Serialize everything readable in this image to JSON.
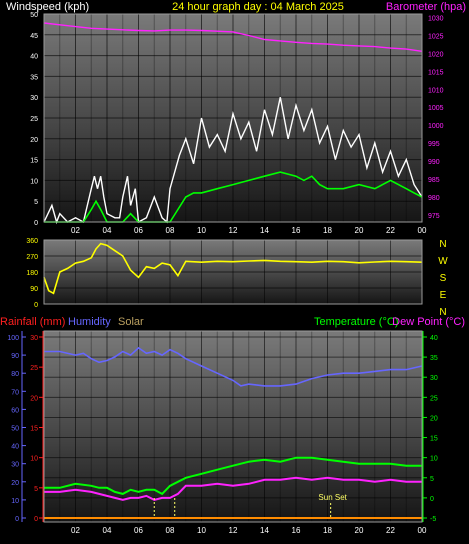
{
  "header": {
    "left_label": "Windspeed (kph)",
    "center_label": "24 hour graph day : 04 March 2025",
    "right_label": "Barometer (hpa)"
  },
  "colors": {
    "wind_gust": "#ffffff",
    "wind_avg": "#00ff00",
    "barometer": "#ff22ff",
    "direction": "#ffff00",
    "rainfall": "#ff2020",
    "humidity": "#6666ff",
    "solar": "#bba060",
    "temperature": "#00ff00",
    "dew_point": "#ff22ff",
    "sunset": "#ffff66"
  },
  "x_tick_labels": [
    "02",
    "04",
    "06",
    "08",
    "10",
    "12",
    "14",
    "16",
    "18",
    "20",
    "22",
    "00"
  ],
  "chart_data": [
    {
      "type": "line",
      "name": "wind-and-barometer",
      "xlim": [
        0,
        24
      ],
      "y_left": {
        "label": "Windspeed (kph)",
        "ticks": [
          0,
          5,
          10,
          15,
          20,
          25,
          30,
          35,
          40,
          45,
          50
        ],
        "range": [
          0,
          50
        ]
      },
      "y_right": {
        "label": "Barometer (hpa)",
        "ticks": [
          975,
          980,
          985,
          990,
          995,
          1000,
          1005,
          1010,
          1015,
          1020,
          1025,
          1030
        ],
        "range": [
          973,
          1031
        ]
      },
      "series": [
        {
          "name": "Barometer (hpa)",
          "axis": "right",
          "x": [
            0,
            1,
            2,
            3,
            4,
            5,
            6,
            7,
            8,
            9,
            10,
            11,
            12,
            13,
            14,
            15,
            16,
            17,
            18,
            19,
            20,
            21,
            22,
            23,
            24
          ],
          "y": [
            1028.5,
            1028,
            1027.5,
            1027,
            1026.8,
            1026.6,
            1026.4,
            1026.3,
            1026.5,
            1026.5,
            1026.4,
            1026.2,
            1026,
            1025,
            1023.9,
            1023.5,
            1023.1,
            1022.8,
            1022.6,
            1022.3,
            1022.1,
            1021.9,
            1021.5,
            1021.2,
            1020.6
          ]
        },
        {
          "name": "Wind gust",
          "axis": "left",
          "x": [
            0,
            0.5,
            0.8,
            1,
            1.5,
            2,
            2.5,
            3,
            3.2,
            3.4,
            3.6,
            3.8,
            4,
            4.5,
            4.8,
            5,
            5.3,
            5.5,
            5.8,
            6,
            6.5,
            7,
            7.5,
            7.8,
            8,
            8.3,
            8.6,
            9,
            9.5,
            10,
            10.5,
            11,
            11.5,
            12,
            12.5,
            13,
            13.5,
            14,
            14.5,
            15,
            15.5,
            16,
            16.5,
            17,
            17.5,
            18,
            18.5,
            19,
            19.5,
            20,
            20.5,
            21,
            21.5,
            22,
            22.5,
            23,
            23.5,
            24
          ],
          "y": [
            0,
            4,
            0,
            2,
            0,
            1,
            0,
            8,
            11,
            8,
            11,
            6,
            2,
            1,
            1,
            6,
            11,
            4,
            8,
            0,
            1,
            6,
            1,
            0,
            8,
            12,
            16,
            20,
            14,
            25,
            18,
            21,
            17,
            26,
            20,
            24,
            17,
            27,
            21,
            30,
            20,
            28,
            22,
            27,
            19,
            23,
            15,
            22,
            18,
            21,
            13,
            19,
            12,
            17,
            11,
            15,
            9,
            6
          ]
        },
        {
          "name": "Wind average",
          "axis": "left",
          "x": [
            0,
            0.5,
            1,
            1.5,
            2,
            2.5,
            3,
            3.3,
            3.6,
            4,
            4.5,
            5,
            5.5,
            6,
            6.5,
            7,
            7.5,
            8,
            8.5,
            9,
            9.5,
            10,
            11,
            12,
            13,
            14,
            15,
            16,
            16.5,
            17,
            17.5,
            18,
            19,
            20,
            21,
            21.5,
            22,
            22.5,
            23,
            23.5,
            24
          ],
          "y": [
            0,
            0,
            0,
            0,
            0,
            0,
            3,
            5,
            3,
            0,
            0,
            0,
            2,
            0,
            0,
            0,
            0,
            0,
            3,
            6,
            7,
            7,
            8,
            9,
            10,
            11,
            12,
            11,
            10,
            11,
            9,
            8,
            8,
            9,
            8,
            9,
            10,
            9,
            8,
            7,
            6
          ]
        }
      ]
    },
    {
      "type": "line",
      "name": "wind-direction",
      "xlim": [
        0,
        24
      ],
      "y_left": {
        "ticks": [
          0,
          90,
          180,
          270,
          360
        ],
        "range": [
          0,
          360
        ]
      },
      "y_right_labels": [
        "N",
        "W",
        "S",
        "E",
        "N"
      ],
      "series": [
        {
          "name": "Wind direction",
          "x": [
            0,
            0.3,
            0.6,
            1,
            1.5,
            2,
            2.5,
            3,
            3.3,
            3.6,
            4,
            4.5,
            5,
            5.5,
            6,
            6.5,
            7,
            7.5,
            8,
            8.5,
            9,
            10,
            11,
            12,
            13,
            14,
            15,
            16,
            17,
            18,
            19,
            20,
            21,
            22,
            23,
            24
          ],
          "y": [
            150,
            75,
            60,
            180,
            200,
            230,
            240,
            260,
            310,
            340,
            330,
            300,
            270,
            190,
            150,
            210,
            200,
            230,
            220,
            160,
            240,
            235,
            240,
            238,
            242,
            245,
            240,
            238,
            235,
            240,
            238,
            232,
            236,
            240,
            238,
            235
          ]
        }
      ]
    },
    {
      "type": "line",
      "name": "rain-humidity-temperature",
      "xlim": [
        0,
        24
      ],
      "y_far_left": {
        "label": "Humidity",
        "ticks": [
          0,
          10,
          20,
          30,
          40,
          50,
          60,
          70,
          80,
          90,
          100
        ],
        "range": [
          0,
          100
        ]
      },
      "y_left": {
        "label": "Rainfall (mm)",
        "ticks": [
          0,
          5,
          10,
          15,
          20,
          25,
          30
        ],
        "range": [
          0,
          30
        ]
      },
      "y_right": {
        "label": "Temperature (°C)",
        "ticks": [
          -5,
          0,
          5,
          10,
          15,
          20,
          25,
          30,
          35,
          40
        ],
        "range": [
          -5,
          40
        ]
      },
      "legend_extra": [
        "Solar",
        "Dew Point (°C)"
      ],
      "annotations": [
        {
          "text": "Sun Set",
          "x": 18.2
        }
      ],
      "series": [
        {
          "name": "Humidity",
          "axis": "far_left",
          "x": [
            0,
            1,
            2,
            2.5,
            3,
            3.5,
            4,
            4.5,
            5,
            5.5,
            6,
            6.5,
            7,
            7.5,
            8,
            8.5,
            9,
            10,
            11,
            12,
            12.5,
            13,
            14,
            15,
            16,
            17,
            18,
            19,
            20,
            21,
            22,
            23,
            24
          ],
          "y": [
            92,
            92,
            90,
            91,
            88,
            86,
            87,
            89,
            92,
            90,
            94,
            91,
            92,
            90,
            93,
            91,
            88,
            84,
            80,
            76,
            73,
            74,
            73,
            73,
            74,
            77,
            79,
            80,
            80,
            81,
            82,
            82,
            84
          ]
        },
        {
          "name": "Rainfall (mm)",
          "axis": "left",
          "x": [
            0,
            24
          ],
          "y": [
            0,
            0
          ]
        },
        {
          "name": "Temperature (°C)",
          "axis": "right",
          "x": [
            0,
            1,
            2,
            3,
            3.5,
            4,
            4.5,
            5,
            5.5,
            6,
            6.5,
            7,
            7.5,
            8,
            8.5,
            9,
            10,
            11,
            12,
            13,
            14,
            15,
            16,
            17,
            18,
            19,
            20,
            21,
            22,
            23,
            24
          ],
          "y": [
            2.5,
            2.5,
            3.5,
            3,
            2.5,
            2.5,
            1.5,
            1,
            2,
            1.5,
            2,
            2,
            1,
            3,
            4,
            5,
            6,
            7,
            8,
            9,
            9.5,
            9,
            10,
            10,
            9.5,
            9,
            8.5,
            8.5,
            8.5,
            8,
            8
          ]
        },
        {
          "name": "Dew Point (°C)",
          "axis": "right",
          "x": [
            0,
            1,
            2,
            3,
            3.5,
            4,
            4.5,
            5,
            5.5,
            6,
            6.5,
            7,
            7.5,
            8,
            8.5,
            9,
            10,
            11,
            12,
            13,
            14,
            15,
            16,
            17,
            18,
            19,
            20,
            21,
            22,
            23,
            24
          ],
          "y": [
            1.5,
            1.5,
            2,
            1.5,
            1,
            0.5,
            0,
            -0.5,
            0,
            0,
            0.5,
            -0.5,
            0,
            0,
            1,
            3,
            3,
            3.5,
            3,
            3.5,
            4.5,
            4.5,
            5,
            4.5,
            5,
            4.5,
            4.5,
            4,
            4.5,
            4,
            4
          ]
        },
        {
          "name": "Solar",
          "axis": "far_left",
          "x": [
            0,
            24
          ],
          "y": [
            0,
            0
          ]
        }
      ]
    }
  ],
  "panel3_labels": {
    "rainfall": "Rainfall (mm)",
    "humidity": "Humidity",
    "solar": "Solar",
    "temperature": "Temperature (°C)",
    "dew_point": "Dew Point (°C)"
  }
}
